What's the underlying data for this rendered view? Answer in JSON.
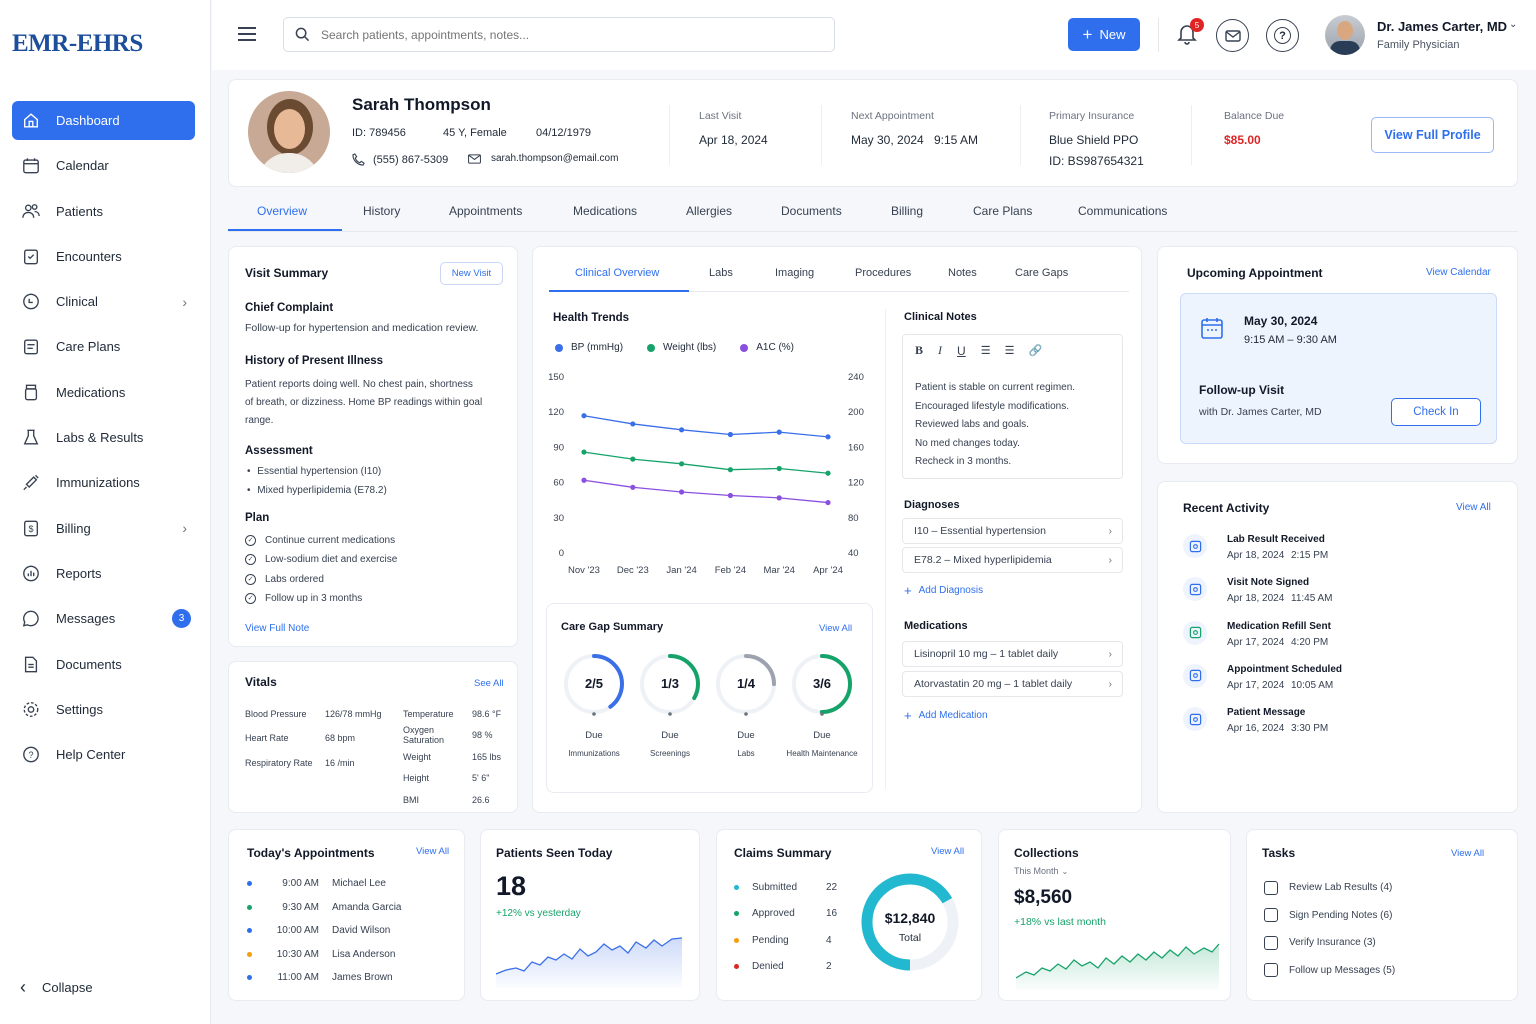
{
  "app": {
    "logo_text": "EMR-EHRS"
  },
  "sidebar": {
    "items": [
      {
        "label": "Dashboard",
        "icon": "home-icon",
        "active": true
      },
      {
        "label": "Calendar",
        "icon": "calendar-icon"
      },
      {
        "label": "Patients",
        "icon": "users-icon"
      },
      {
        "label": "Encounters",
        "icon": "clipboard-icon"
      },
      {
        "label": "Clinical",
        "icon": "stethoscope-icon",
        "chevron": true
      },
      {
        "label": "Care Plans",
        "icon": "care-plan-icon"
      },
      {
        "label": "Medications",
        "icon": "pill-bottle-icon"
      },
      {
        "label": "Labs & Results",
        "icon": "flask-icon"
      },
      {
        "label": "Immunizations",
        "icon": "syringe-icon"
      },
      {
        "label": "Billing",
        "icon": "billing-icon",
        "chevron": true
      },
      {
        "label": "Reports",
        "icon": "report-icon"
      },
      {
        "label": "Messages",
        "icon": "message-icon",
        "badge": "3"
      },
      {
        "label": "Documents",
        "icon": "document-icon"
      },
      {
        "label": "Settings",
        "icon": "gear-icon"
      },
      {
        "label": "Help Center",
        "icon": "help-icon"
      }
    ],
    "collapse_label": "Collapse"
  },
  "topbar": {
    "search_placeholder": "Search patients, appointments, notes...",
    "new_label": "New",
    "notif_count": "5",
    "user_name": "Dr. James Carter, MD",
    "user_role": "Family Physician"
  },
  "patient": {
    "name": "Sarah Thompson",
    "id": "ID: 789456",
    "age_sex": "45 Y, Female",
    "dob": "04/12/1979",
    "phone": "(555) 867-5309",
    "email": "sarah.thompson@email.com",
    "last_visit_label": "Last Visit",
    "last_visit": "Apr 18, 2024",
    "next_appt_label": "Next Appointment",
    "next_appt_date": "May 30, 2024",
    "next_appt_time": "9:15 AM",
    "insurance_label": "Primary Insurance",
    "insurance": "Blue Shield PPO",
    "insurance_id": "ID: BS987654321",
    "balance_label": "Balance Due",
    "balance": "$85.00",
    "view_profile": "View Full Profile"
  },
  "tabs": [
    "Overview",
    "History",
    "Appointments",
    "Medications",
    "Allergies",
    "Documents",
    "Billing",
    "Care Plans",
    "Communications"
  ],
  "visit": {
    "title": "Visit Summary",
    "new_visit": "New Visit",
    "cc_title": "Chief Complaint",
    "cc": "Follow-up for hypertension and medication review.",
    "hpi_title": "History of Present Illness",
    "hpi": [
      "Patient reports doing well. No chest pain, shortness",
      "of breath, or dizziness. Home BP readings within goal",
      "range."
    ],
    "assess_title": "Assessment",
    "assess": [
      "Essential hypertension (I10)",
      "Mixed hyperlipidemia (E78.2)"
    ],
    "plan_title": "Plan",
    "plan": [
      "Continue current medications",
      "Low-sodium diet and exercise",
      "Labs ordered",
      "Follow up in 3 months"
    ],
    "view_full": "View Full Note"
  },
  "vitals": {
    "title": "Vitals",
    "see_all": "See All",
    "left": [
      [
        "Blood Pressure",
        "126/78 mmHg"
      ],
      [
        "Heart Rate",
        "68 bpm"
      ],
      [
        "Respiratory Rate",
        "16 /min"
      ]
    ],
    "right": [
      [
        "Temperature",
        "98.6 °F"
      ],
      [
        "Oxygen Saturation",
        "98 %"
      ],
      [
        "Weight",
        "165 lbs"
      ],
      [
        "Height",
        "5' 6\""
      ],
      [
        "BMI",
        "26.6"
      ]
    ]
  },
  "clinical_tabs": [
    "Clinical Overview",
    "Labs",
    "Imaging",
    "Procedures",
    "Notes",
    "Care Gaps"
  ],
  "trends": {
    "title": "Health Trends"
  },
  "chart_data": {
    "type": "line",
    "title": "Health Trends",
    "categories": [
      "Nov '23",
      "Dec '23",
      "Jan '24",
      "Feb '24",
      "Mar '24",
      "Apr '24"
    ],
    "left_axis": [
      150,
      120,
      90,
      60,
      30,
      0
    ],
    "right_axis": [
      240,
      200,
      160,
      120,
      80,
      40
    ],
    "ylim_left": [
      0,
      150
    ],
    "ylim_right": [
      40,
      240
    ],
    "series": [
      {
        "name": "BP (mmHg)",
        "axis": "left",
        "color": "#3b6fe8",
        "values": [
          117,
          110,
          105,
          101,
          103,
          99
        ]
      },
      {
        "name": "Weight (lbs)",
        "axis": "left",
        "color": "#16a36a",
        "values": [
          86,
          80,
          76,
          71,
          72,
          68
        ]
      },
      {
        "name": "A1C (%)",
        "axis": "left",
        "color": "#8b4fe0",
        "values": [
          62,
          56,
          52,
          49,
          47,
          43
        ]
      }
    ]
  },
  "caregap": {
    "title": "Care Gap Summary",
    "view_all": "View All",
    "items": [
      {
        "val": "2/5",
        "frac": 0.4,
        "color": "#3b6fe8",
        "due": "Due",
        "name": "Immunizations"
      },
      {
        "val": "1/3",
        "frac": 0.333,
        "color": "#16a36a",
        "due": "Due",
        "name": "Screenings"
      },
      {
        "val": "1/4",
        "frac": 0.25,
        "color": "#9ca3af",
        "due": "Due",
        "name": "Labs"
      },
      {
        "val": "3/6",
        "frac": 0.5,
        "color": "#16a36a",
        "due": "Due",
        "name": "Health Maintenance"
      }
    ]
  },
  "notes": {
    "title": "Clinical Notes",
    "text": [
      "Patient is stable on current regimen.",
      "Encouraged lifestyle modifications.",
      "Reviewed labs and goals.",
      "No med changes today.",
      "Recheck in 3 months."
    ],
    "dx_title": "Diagnoses",
    "dx": [
      "I10 – Essential hypertension",
      "E78.2 – Mixed hyperlipidemia"
    ],
    "add_dx": "Add Diagnosis",
    "med_title": "Medications",
    "meds": [
      "Lisinopril 10 mg – 1 tablet daily",
      "Atorvastatin 20 mg – 1 tablet daily"
    ],
    "add_med": "Add Medication"
  },
  "upcoming": {
    "title": "Upcoming Appointment",
    "view_cal": "View Calendar",
    "date": "May 30, 2024",
    "time": "9:15 AM – 9:30 AM",
    "type": "Follow-up Visit",
    "with": "with Dr. James Carter, MD",
    "check_in": "Check In"
  },
  "activity": {
    "title": "Recent Activity",
    "view_all": "View All",
    "items": [
      {
        "t": "Lab Result Received",
        "d": "Apr 18, 2024",
        "h": "2:15 PM",
        "icon": "lab-icon",
        "color": "#2f6fed"
      },
      {
        "t": "Visit Note Signed",
        "d": "Apr 18, 2024",
        "h": "11:45 AM",
        "icon": "note-icon",
        "color": "#2f6fed"
      },
      {
        "t": "Medication Refill Sent",
        "d": "Apr 17, 2024",
        "h": "4:20 PM",
        "icon": "refill-icon",
        "color": "#16a36a"
      },
      {
        "t": "Appointment Scheduled",
        "d": "Apr 17, 2024",
        "h": "10:05 AM",
        "icon": "calendar-icon",
        "color": "#2f6fed"
      },
      {
        "t": "Patient Message",
        "d": "Apr 16, 2024",
        "h": "3:30 PM",
        "icon": "message-icon",
        "color": "#2f6fed"
      }
    ]
  },
  "today": {
    "title": "Today's Appointments",
    "view_all": "View All",
    "items": [
      {
        "time": "9:00 AM",
        "name": "Michael Lee",
        "color": "#2f6fed"
      },
      {
        "time": "9:30 AM",
        "name": "Amanda Garcia",
        "color": "#16a36a"
      },
      {
        "time": "10:00 AM",
        "name": "David Wilson",
        "color": "#2f6fed"
      },
      {
        "time": "10:30 AM",
        "name": "Lisa Anderson",
        "color": "#f59e0b"
      },
      {
        "time": "11:00 AM",
        "name": "James Brown",
        "color": "#2f6fed"
      }
    ]
  },
  "seen": {
    "title": "Patients Seen Today",
    "value": "18",
    "delta": "+12% vs yesterday"
  },
  "claims": {
    "title": "Claims Summary",
    "view_all": "View All",
    "items": [
      {
        "label": "Submitted",
        "val": "22",
        "color": "#22b8cf"
      },
      {
        "label": "Approved",
        "val": "16",
        "color": "#16a36a"
      },
      {
        "label": "Pending",
        "val": "4",
        "color": "#f59e0b"
      },
      {
        "label": "Denied",
        "val": "2",
        "color": "#dc2626"
      }
    ],
    "total": "$12,840",
    "total_label": "Total"
  },
  "collections": {
    "title": "Collections",
    "period": "This Month",
    "value": "$8,560",
    "delta": "+18% vs last month"
  },
  "tasks": {
    "title": "Tasks",
    "view_all": "View All",
    "items": [
      "Review Lab Results (4)",
      "Sign Pending Notes (6)",
      "Verify Insurance (3)",
      "Follow up Messages (5)"
    ]
  }
}
